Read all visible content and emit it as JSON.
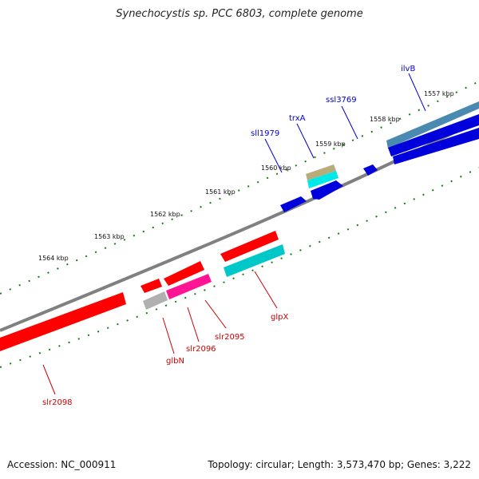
{
  "title": "Synechocystis sp. PCC 6803, complete genome",
  "footer": {
    "accession": "Accession: NC_000911",
    "topology": "Topology: circular; Length: 3,573,470 bp; Genes: 3,222"
  },
  "colors": {
    "backbone": "#808080",
    "ticks": "#1a7a1a",
    "forward_label": "#0000cc",
    "reverse_label": "#cc0000"
  },
  "scale_labels": [
    "1557 kbp",
    "1558 kbp",
    "1559 kbp",
    "1560 kbp",
    "1561 kbp",
    "1562 kbp",
    "1563 kbp",
    "1564 kbp"
  ],
  "forward_genes": [
    {
      "label": "ilvB",
      "color": "#0000dd"
    },
    {
      "label": "ssl3769",
      "color": "#0000dd"
    },
    {
      "label": "trxA",
      "color": "#b8ad7a"
    },
    {
      "label": "sll1979",
      "color": "#0000dd"
    }
  ],
  "reverse_genes": [
    {
      "label": "glpX",
      "color": "#00c8c8"
    },
    {
      "label": "slr2095",
      "color": "#ff1493"
    },
    {
      "label": "slr2096",
      "color": "#ff0000"
    },
    {
      "label": "glbN",
      "color": "#b0b0b0"
    },
    {
      "label": "slr2098",
      "color": "#ff0000"
    }
  ]
}
